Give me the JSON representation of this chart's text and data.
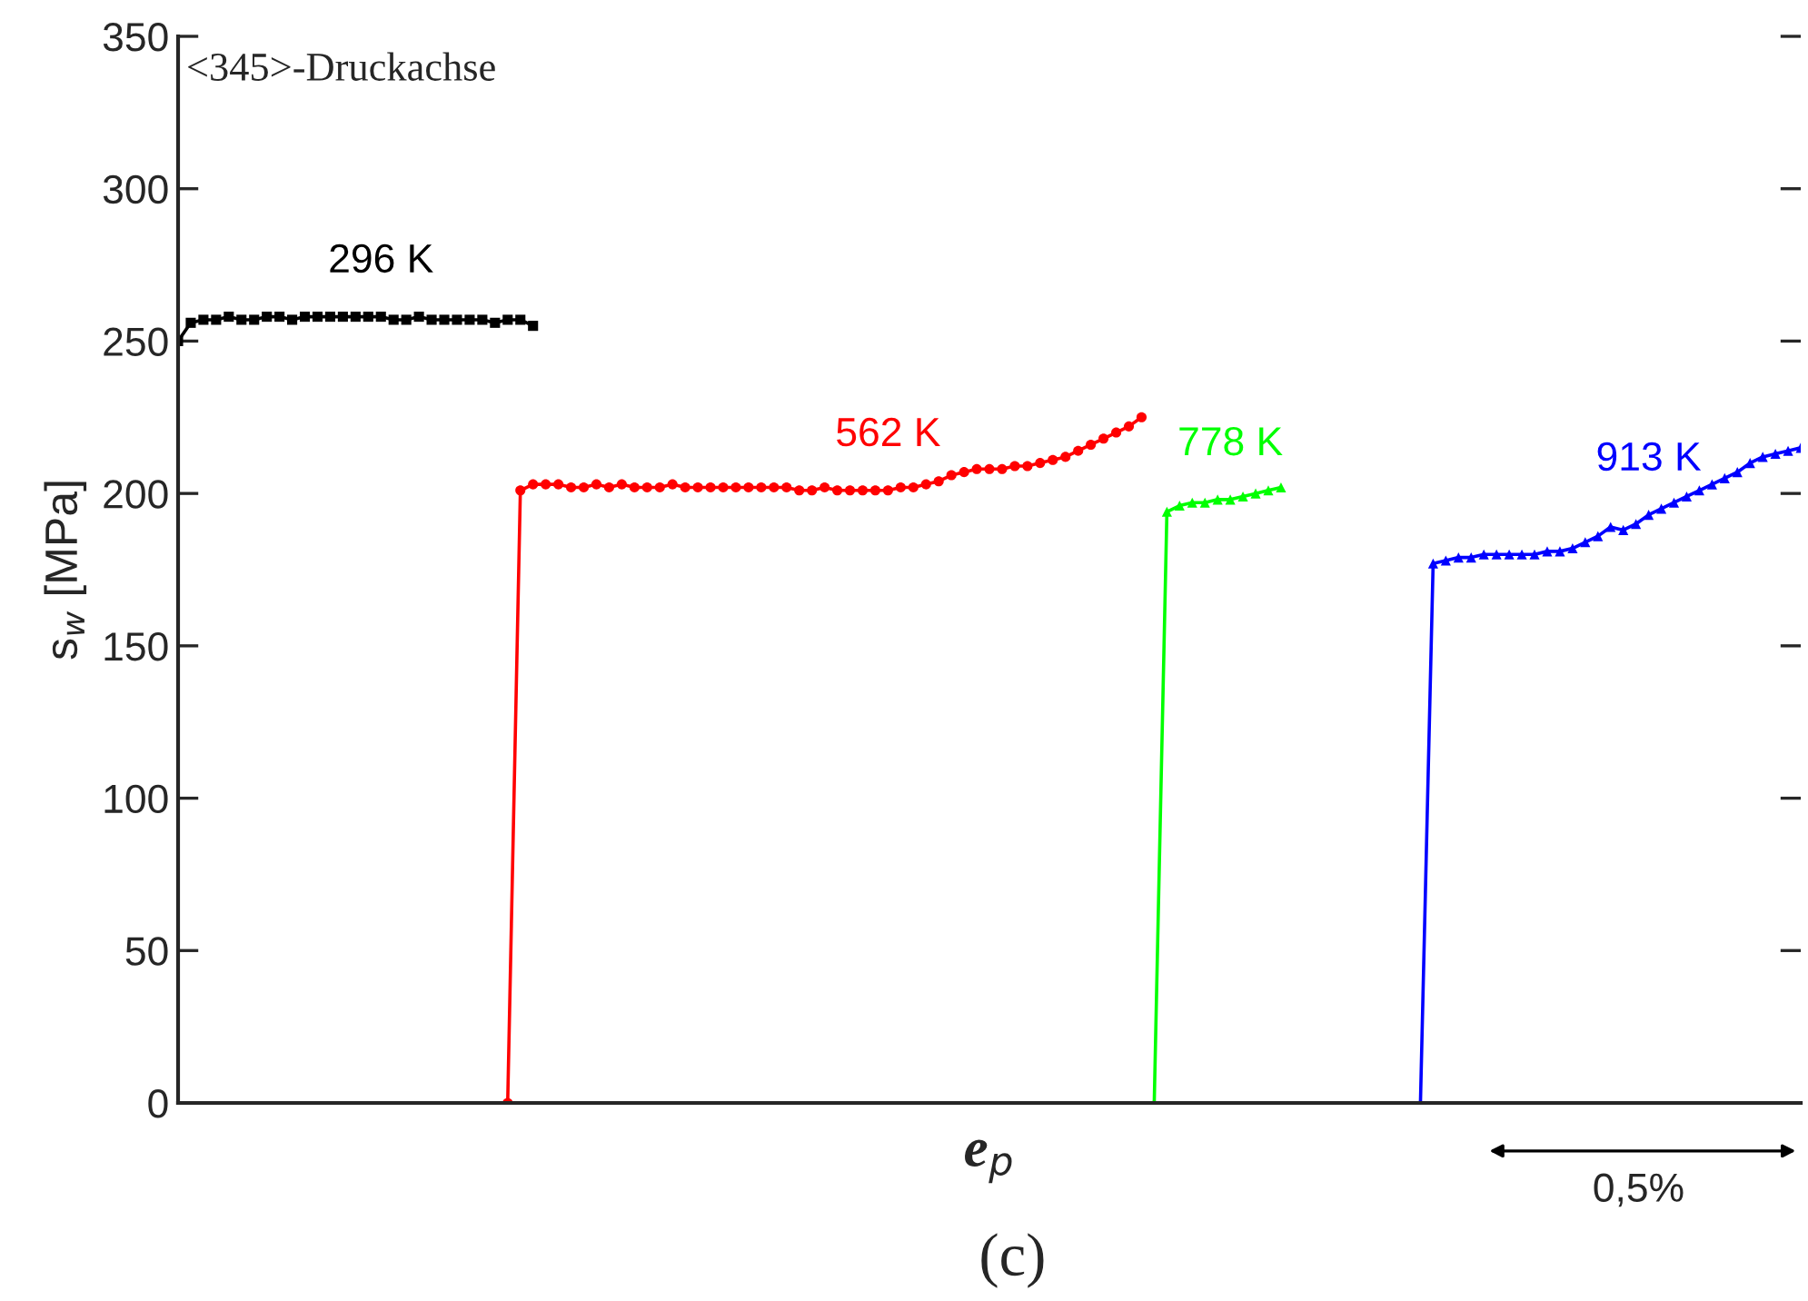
{
  "chart_data": {
    "type": "line",
    "xlabel": "e$_{p}$",
    "ylabel": "s$_{w}$ [MPa]",
    "categories": [
      null,
      null,
      null,
      null,
      null,
      null,
      null,
      null,
      null,
      null,
      null,
      null,
      null,
      null,
      null,
      null,
      null,
      null,
      null,
      null,
      null,
      null,
      null,
      null,
      null,
      null,
      null,
      null,
      null,
      null,
      null,
      null,
      null,
      null,
      null,
      null,
      null,
      null,
      null,
      null,
      null,
      null,
      null,
      null,
      null,
      null,
      null,
      null,
      null,
      null,
      null,
      null,
      null,
      null,
      null,
      null,
      null,
      null,
      null,
      null,
      null,
      null,
      null,
      null,
      null,
      null,
      null,
      null,
      null,
      null,
      null,
      null,
      null,
      null,
      null,
      null,
      null,
      null,
      null,
      null,
      null,
      null,
      null,
      null,
      null,
      null,
      null,
      null,
      null,
      null,
      null,
      null,
      null,
      null,
      null,
      null,
      null,
      null,
      null,
      null,
      null,
      null,
      null,
      null,
      null,
      null,
      null,
      null,
      null,
      null,
      null,
      null,
      null,
      null,
      null,
      null,
      null,
      null,
      null,
      null,
      null,
      null,
      null,
      null,
      null,
      null,
      null,
      null,
      null
    ],
    "ylim": [
      0,
      350
    ],
    "yticks": [
      0,
      50,
      100,
      150,
      200,
      250,
      300,
      350
    ],
    "tick_labels": "y",
    "series": [
      {
        "name": "296 K",
        "color": "#000000",
        "marker": "square",
        "values": [
          250,
          256,
          257,
          257,
          258,
          257,
          257,
          258,
          258,
          257,
          258,
          258,
          258,
          258,
          258,
          258,
          258,
          257,
          257,
          258,
          257,
          257,
          257,
          257,
          257,
          256,
          257,
          257,
          255,
          null,
          null,
          null,
          null,
          null,
          null,
          null,
          null,
          null,
          null,
          null,
          null,
          null,
          null,
          null,
          null,
          null,
          null,
          null,
          null,
          null,
          null,
          null,
          null,
          null,
          null,
          null,
          null,
          null,
          null,
          null,
          null,
          null,
          null,
          null,
          null,
          null,
          null,
          null,
          null,
          null,
          null,
          null,
          null,
          null,
          null,
          null,
          null,
          null,
          null,
          null,
          null,
          null,
          null,
          null,
          null,
          null,
          null,
          null,
          null,
          null,
          null,
          null,
          null,
          null,
          null,
          null,
          null,
          null,
          null,
          null,
          null,
          null,
          null,
          null,
          null,
          null,
          null,
          null,
          null,
          null,
          null,
          null,
          null,
          null,
          null,
          null,
          null,
          null,
          null,
          null,
          null,
          null,
          null,
          null,
          null,
          null,
          null,
          null,
          null
        ]
      },
      {
        "name": "562 K",
        "color": "#ff0000",
        "marker": "circle",
        "values": [
          null,
          null,
          null,
          null,
          null,
          null,
          null,
          null,
          null,
          null,
          null,
          null,
          null,
          null,
          null,
          null,
          null,
          null,
          null,
          null,
          null,
          null,
          null,
          null,
          null,
          null,
          0,
          201,
          203,
          203,
          203,
          202,
          202,
          203,
          202,
          203,
          202,
          202,
          202,
          203,
          202,
          202,
          202,
          202,
          202,
          202,
          202,
          202,
          202,
          201,
          201,
          202,
          201,
          201,
          201,
          201,
          201,
          202,
          202,
          203,
          204,
          206,
          207,
          208,
          208,
          208,
          209,
          209,
          210,
          211,
          212,
          214,
          216,
          218,
          220,
          222,
          225,
          null,
          null,
          null,
          null,
          null,
          null,
          null,
          null,
          null,
          null,
          null,
          null,
          null,
          null,
          null,
          null,
          null,
          null,
          null,
          null,
          null,
          null,
          null,
          null,
          null,
          null,
          null,
          null,
          null,
          null,
          null,
          null,
          null,
          null,
          null,
          null,
          null,
          null,
          null,
          null,
          null,
          null,
          null,
          null,
          null,
          null,
          null,
          null,
          null,
          null,
          null,
          null
        ]
      },
      {
        "name": "778 K",
        "color": "#00ff00",
        "marker": "triangle",
        "values": [
          null,
          null,
          null,
          null,
          null,
          null,
          null,
          null,
          null,
          null,
          null,
          null,
          null,
          null,
          null,
          null,
          null,
          null,
          null,
          null,
          null,
          null,
          null,
          null,
          null,
          null,
          null,
          null,
          null,
          null,
          null,
          null,
          null,
          null,
          null,
          null,
          null,
          null,
          null,
          null,
          null,
          null,
          null,
          null,
          null,
          null,
          null,
          null,
          null,
          null,
          null,
          null,
          null,
          null,
          null,
          null,
          null,
          null,
          null,
          null,
          null,
          null,
          null,
          null,
          null,
          null,
          null,
          null,
          null,
          null,
          null,
          null,
          null,
          null,
          null,
          null,
          null,
          0,
          194,
          196,
          197,
          197,
          198,
          198,
          199,
          200,
          201,
          202,
          null,
          null,
          null,
          null,
          null,
          null,
          null,
          null,
          null,
          null,
          null,
          null,
          null,
          null,
          null,
          null,
          null,
          null,
          null,
          null,
          null,
          null,
          null,
          null,
          null,
          null,
          null,
          null,
          null,
          null,
          null,
          null,
          null,
          null,
          null,
          null,
          null,
          null,
          null,
          null,
          null
        ]
      },
      {
        "name": "913 K",
        "color": "#0000ff",
        "marker": "triangle",
        "values": [
          null,
          null,
          null,
          null,
          null,
          null,
          null,
          null,
          null,
          null,
          null,
          null,
          null,
          null,
          null,
          null,
          null,
          null,
          null,
          null,
          null,
          null,
          null,
          null,
          null,
          null,
          null,
          null,
          null,
          null,
          null,
          null,
          null,
          null,
          null,
          null,
          null,
          null,
          null,
          null,
          null,
          null,
          null,
          null,
          null,
          null,
          null,
          null,
          null,
          null,
          null,
          null,
          null,
          null,
          null,
          null,
          null,
          null,
          null,
          null,
          null,
          null,
          null,
          null,
          null,
          null,
          null,
          null,
          null,
          null,
          null,
          null,
          null,
          null,
          null,
          null,
          null,
          null,
          null,
          null,
          null,
          null,
          null,
          null,
          null,
          null,
          null,
          null,
          null,
          null,
          null,
          null,
          null,
          null,
          null,
          null,
          null,
          null,
          0,
          177,
          178,
          179,
          179,
          180,
          180,
          180,
          180,
          180,
          181,
          181,
          182,
          184,
          186,
          189,
          188,
          190,
          193,
          195,
          197,
          199,
          201,
          203,
          205,
          207,
          210,
          212,
          213,
          214,
          215
        ]
      }
    ],
    "annotations": [
      "<345>-Druckachse",
      "0,5%",
      "(c)"
    ]
  }
}
